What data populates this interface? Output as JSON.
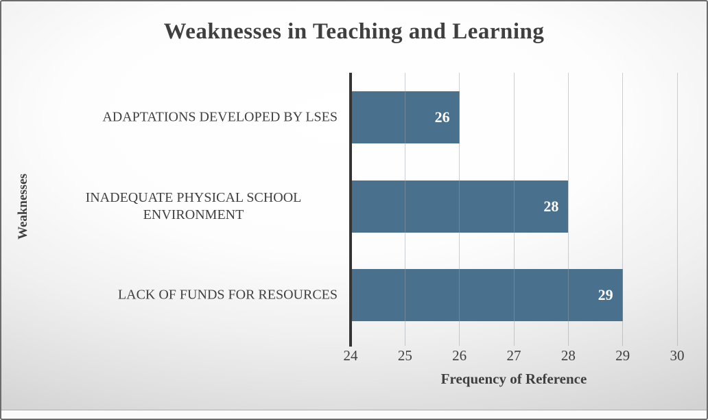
{
  "chart_data": {
    "type": "bar",
    "orientation": "horizontal",
    "title": "Weaknesses in Teaching and Learning",
    "categories": [
      "ADAPTATIONS DEVELOPED BY LSES",
      "INADEQUATE PHYSICAL SCHOOL ENVIRONMENT",
      "LACK OF FUNDS FOR RESOURCES"
    ],
    "values": [
      26,
      28,
      29
    ],
    "xlabel": "Frequency of Reference",
    "ylabel": "Weaknesses",
    "xlim": [
      24,
      30
    ],
    "xticks": [
      24,
      25,
      26,
      27,
      28,
      29,
      30
    ],
    "grid": "vertical",
    "legend": "none",
    "data_labels": "inside-end",
    "colors": {
      "bar": "#49718E",
      "data_label": "#FFFFFF",
      "text": "#3F3F3F",
      "axis_line": "#343434",
      "gridline": "#99A0A6",
      "background_center": "#FFFFFF",
      "background_edge": "#C6C6C6"
    }
  }
}
